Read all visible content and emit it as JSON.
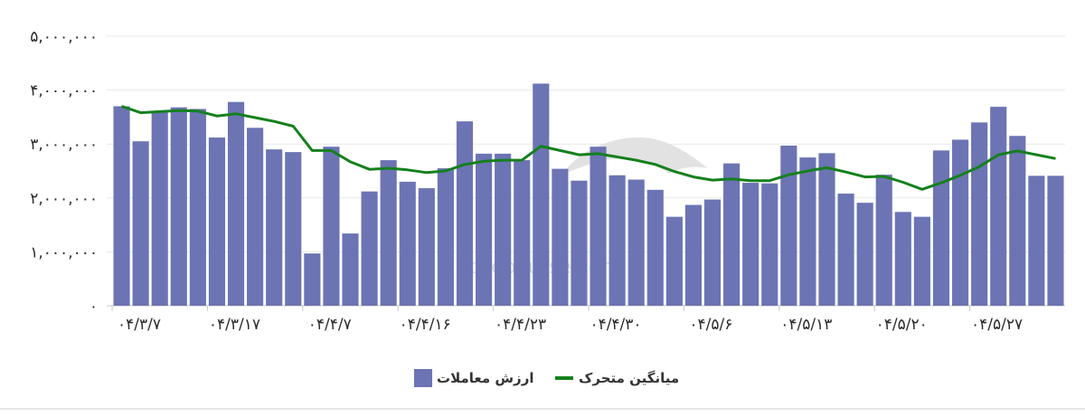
{
  "chart_data": {
    "type": "bar",
    "title": "",
    "xlabel": "",
    "ylabel": "",
    "ylim": [
      0,
      5000000
    ],
    "yticks": [
      {
        "value": 0,
        "label": "۰"
      },
      {
        "value": 1000000,
        "label": "۱,۰۰۰,۰۰۰"
      },
      {
        "value": 2000000,
        "label": "۲,۰۰۰,۰۰۰"
      },
      {
        "value": 3000000,
        "label": "۳,۰۰۰,۰۰۰"
      },
      {
        "value": 4000000,
        "label": "۴,۰۰۰,۰۰۰"
      },
      {
        "value": 5000000,
        "label": "۵,۰۰۰,۰۰۰"
      }
    ],
    "xticks": [
      {
        "index": 0,
        "label": "۰۴/۳/۷"
      },
      {
        "index": 5,
        "label": "۰۴/۳/۱۷"
      },
      {
        "index": 10,
        "label": "۰۴/۴/۷"
      },
      {
        "index": 15,
        "label": "۰۴/۴/۱۶"
      },
      {
        "index": 20,
        "label": "۰۴/۴/۲۳"
      },
      {
        "index": 25,
        "label": "۰۴/۴/۳۰"
      },
      {
        "index": 30,
        "label": "۰۴/۵/۶"
      },
      {
        "index": 35,
        "label": "۰۴/۵/۱۳"
      },
      {
        "index": 40,
        "label": "۰۴/۵/۲۰"
      },
      {
        "index": 45,
        "label": "۰۴/۵/۲۷"
      }
    ],
    "grid": true,
    "legend_position": "bottom",
    "series": [
      {
        "name": "ارزش معاملات",
        "kind": "bar",
        "color": "#6c74b4",
        "values": [
          3700000,
          3050000,
          3600000,
          3680000,
          3650000,
          3120000,
          3780000,
          3300000,
          2900000,
          2850000,
          970000,
          2950000,
          1340000,
          2120000,
          2700000,
          2300000,
          2180000,
          2550000,
          3420000,
          2820000,
          2820000,
          2700000,
          4120000,
          2540000,
          2320000,
          2950000,
          2420000,
          2340000,
          2150000,
          1650000,
          1870000,
          1970000,
          2640000,
          2280000,
          2270000,
          2970000,
          2750000,
          2830000,
          2080000,
          1910000,
          2430000,
          1740000,
          1650000,
          2880000,
          3080000,
          3400000,
          3690000,
          3150000,
          2410000,
          2410000
        ]
      },
      {
        "name": "میانگین متحرک",
        "kind": "line",
        "color": "#15801d",
        "values": [
          3700000,
          3580000,
          3600000,
          3620000,
          3610000,
          3520000,
          3560000,
          3490000,
          3420000,
          3330000,
          2880000,
          2880000,
          2670000,
          2530000,
          2550000,
          2520000,
          2470000,
          2500000,
          2620000,
          2680000,
          2700000,
          2700000,
          2960000,
          2880000,
          2800000,
          2820000,
          2760000,
          2700000,
          2620000,
          2490000,
          2390000,
          2330000,
          2350000,
          2320000,
          2320000,
          2430000,
          2500000,
          2560000,
          2480000,
          2390000,
          2400000,
          2290000,
          2160000,
          2280000,
          2420000,
          2580000,
          2800000,
          2870000,
          2800000,
          2730000
        ]
      }
    ],
    "watermark": "nabzebourse.com"
  }
}
